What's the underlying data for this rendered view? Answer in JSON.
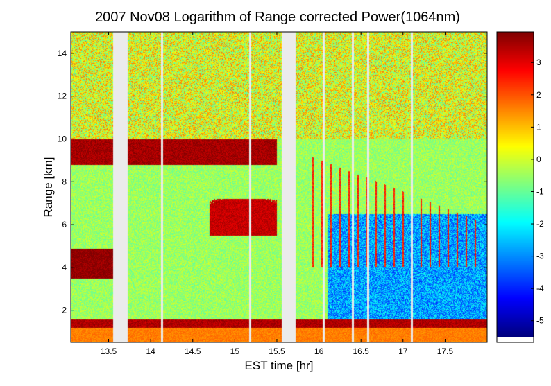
{
  "chart_data": {
    "type": "heatmap",
    "title": "2007 Nov08  Logarithm of Range corrected Power(1064nm)",
    "xlabel": "EST time [hr]",
    "ylabel": "Range [km]",
    "xlim": [
      13.05,
      18.0
    ],
    "ylim": [
      0.5,
      15.0
    ],
    "x_ticks": [
      13.5,
      14,
      14.5,
      15,
      15.5,
      16,
      16.5,
      17,
      17.5
    ],
    "x_tick_labels": [
      "13.5",
      "14",
      "14.5",
      "15",
      "15.5",
      "16",
      "16.5",
      "17",
      "17.5"
    ],
    "y_ticks": [
      2,
      4,
      6,
      8,
      10,
      12,
      14
    ],
    "y_tick_labels": [
      "2",
      "4",
      "6",
      "8",
      "10",
      "12",
      "14"
    ],
    "colorbar": {
      "colormap": "jet",
      "range": [
        -5.5,
        3.95
      ],
      "ticks": [
        -5,
        -4,
        -3,
        -2,
        -1,
        0,
        1,
        2,
        3
      ],
      "tick_labels": [
        "-5",
        "-4",
        "-3",
        "-2",
        "-1",
        "0",
        "1",
        "2",
        "3"
      ]
    },
    "data_gaps_hr": [
      [
        13.55,
        13.72
      ],
      [
        15.55,
        15.72
      ]
    ],
    "thin_gaps_hr": [
      14.13,
      15.18,
      16.05,
      16.4,
      16.58,
      17.1
    ],
    "features": [
      {
        "name": "boundary layer top",
        "x_range": [
          13.05,
          18.0
        ],
        "y_range": [
          1.2,
          1.6
        ],
        "value": 3.5
      },
      {
        "name": "low cloud",
        "x_range": [
          13.05,
          13.55
        ],
        "y_range": [
          3.5,
          4.9
        ],
        "value": 3.8
      },
      {
        "name": "upper cloud layer",
        "x_range": [
          13.05,
          15.5
        ],
        "y_range": [
          8.8,
          10.0
        ],
        "value": 3.6
      },
      {
        "name": "mid cloud",
        "x_range": [
          14.7,
          15.5
        ],
        "y_range": [
          5.5,
          7.2
        ],
        "value": 3.3
      },
      {
        "name": "fall streaks",
        "x_range": [
          15.9,
          17.9
        ],
        "y_range": [
          4.0,
          9.2
        ],
        "value": 2.5
      }
    ],
    "background": {
      "low_altitude_value": -0.5,
      "high_altitude_value": 0.2,
      "clear_air_late_value": -2.8
    }
  }
}
